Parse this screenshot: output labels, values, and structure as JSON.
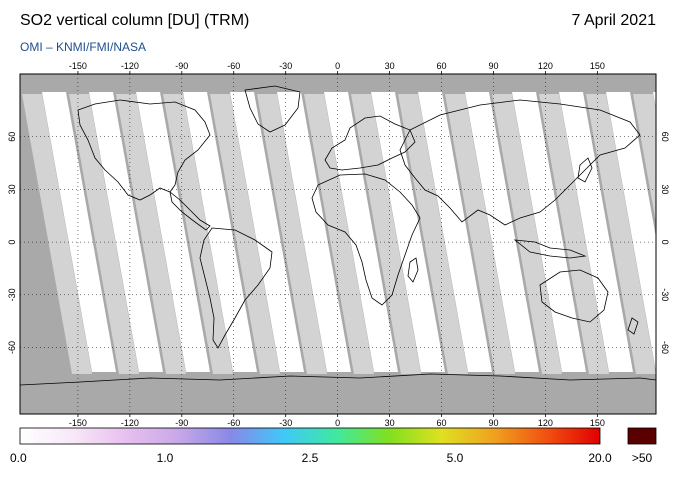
{
  "header": {
    "title": "SO2 vertical column [DU] (TRM)",
    "date": "7 April 2021",
    "subtitle": "OMI  –  KNMI/FMI/NASA"
  },
  "map": {
    "lon_ticks": [
      "-150",
      "-120",
      "-90",
      "-60",
      "-30",
      "0",
      "30",
      "60",
      "90",
      "120",
      "150"
    ],
    "lon_values": [
      -150,
      -120,
      -90,
      -60,
      -30,
      0,
      30,
      60,
      90,
      120,
      150
    ],
    "lat_ticks": [
      "60",
      "30",
      "0",
      "-30",
      "-60"
    ],
    "lat_values": [
      60,
      30,
      0,
      -30,
      -60
    ],
    "colors": {
      "ocean": "#a9a9a9",
      "swath": "#ffffff",
      "gap_light": "#d3d3d3",
      "land": "#ffffff",
      "frame": "#000000"
    }
  },
  "colorbar": {
    "labels": [
      "0.0",
      "1.0",
      "2.5",
      "5.0",
      "20.0"
    ],
    "label_positions": [
      0.0,
      0.25,
      0.5,
      0.75,
      1.0
    ],
    "overflow_label": ">50",
    "overflow_color": "#5a0000",
    "gradient": [
      "#ffffff",
      "#f8e8f8",
      "#e8c0f0",
      "#c8a8e8",
      "#8888e8",
      "#40c8f8",
      "#40e8a0",
      "#80e020",
      "#e0e020",
      "#f0a020",
      "#f05010",
      "#e00000"
    ]
  }
}
